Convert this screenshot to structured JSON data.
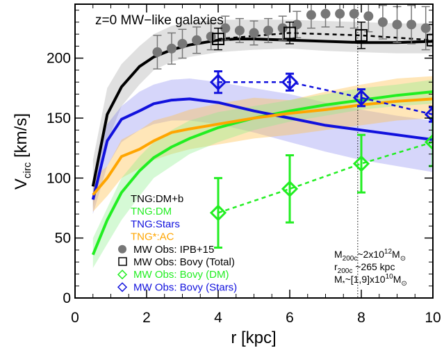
{
  "chart_data": {
    "type": "line",
    "title": "z=0 MW−like galaxies",
    "xlabel": "r [kpc]",
    "ylabel_main": "V",
    "ylabel_sub": "circ",
    "ylabel_unit": " [km/s]",
    "xlim": [
      0,
      10
    ],
    "ylim": [
      0,
      245
    ],
    "xticks": [
      0,
      2,
      4,
      6,
      8,
      10
    ],
    "yticks": [
      0,
      50,
      100,
      150,
      200
    ],
    "grid": false,
    "legend_position": "bottom-left",
    "vline_x": 7.9,
    "colors": {
      "dmb": "#000000",
      "dm": "#22ee22",
      "stars": "#1111dd",
      "ac": "#ffa500",
      "obs": "#777777"
    },
    "bands": [
      {
        "key": "dmb",
        "color": "#bbbbbb",
        "opacity": 0.45,
        "x": [
          0.5,
          0.9,
          1.3,
          1.8,
          2.2,
          2.7,
          3.2,
          4,
          5,
          6,
          7,
          8,
          9,
          10
        ],
        "lo": [
          75,
          130,
          160,
          178,
          190,
          197,
          201,
          205,
          207,
          208,
          206,
          205,
          204,
          204
        ],
        "hi": [
          115,
          175,
          195,
          210,
          220,
          227,
          230,
          232,
          232,
          232,
          231,
          230,
          229,
          229
        ]
      },
      {
        "key": "stars",
        "color": "#7777ee",
        "opacity": 0.3,
        "x": [
          0.5,
          0.9,
          1.3,
          1.8,
          2.2,
          2.7,
          3.2,
          4,
          5,
          6,
          7,
          8,
          9,
          10
        ],
        "lo": [
          70,
          110,
          130,
          140,
          145,
          148,
          148,
          145,
          138,
          130,
          122,
          115,
          110,
          105
        ],
        "hi": [
          100,
          145,
          160,
          172,
          178,
          182,
          183,
          180,
          175,
          170,
          163,
          157,
          152,
          148
        ]
      },
      {
        "key": "ac",
        "color": "#ffc04d",
        "opacity": 0.4,
        "x": [
          0.5,
          0.9,
          1.3,
          1.8,
          2.2,
          2.7,
          3.2,
          4,
          5,
          6,
          7,
          8,
          9,
          10
        ],
        "lo": [
          72,
          85,
          100,
          108,
          115,
          120,
          124,
          128,
          133,
          136,
          140,
          144,
          148,
          150
        ],
        "hi": [
          100,
          110,
          132,
          140,
          148,
          152,
          157,
          162,
          167,
          165,
          172,
          178,
          183,
          185
        ]
      },
      {
        "key": "dm",
        "color": "#88ee88",
        "opacity": 0.35,
        "x": [
          0.5,
          0.9,
          1.3,
          1.8,
          2.2,
          2.7,
          3.2,
          4,
          5,
          6,
          7,
          8,
          9,
          10
        ],
        "lo": [
          25,
          45,
          65,
          85,
          100,
          110,
          120,
          130,
          140,
          147,
          152,
          157,
          160,
          162
        ],
        "hi": [
          50,
          75,
          100,
          118,
          130,
          140,
          148,
          155,
          160,
          165,
          170,
          175,
          178,
          182
        ]
      }
    ],
    "series": [
      {
        "name": "TNG:DM+b",
        "key": "dmb",
        "x": [
          0.5,
          0.9,
          1.3,
          1.8,
          2.2,
          2.7,
          3.2,
          3.6,
          4,
          4.5,
          5,
          6,
          7,
          8,
          9,
          10
        ],
        "y": [
          93,
          153,
          176,
          193,
          201,
          207,
          211,
          213,
          215,
          216,
          216,
          215,
          214,
          213,
          213,
          214
        ]
      },
      {
        "name": "TNG:DM",
        "key": "dm",
        "x": [
          0.5,
          0.9,
          1.3,
          1.8,
          2.2,
          2.7,
          3.2,
          4,
          5,
          6,
          7,
          8,
          9,
          10
        ],
        "y": [
          36,
          65,
          88,
          106,
          117,
          126,
          133,
          142,
          150,
          156,
          161,
          165,
          169,
          172
        ]
      },
      {
        "name": "TNG:Stars",
        "key": "stars",
        "x": [
          0.5,
          0.9,
          1.3,
          1.8,
          2.2,
          2.7,
          3.2,
          4,
          5,
          6,
          7,
          8,
          9,
          10
        ],
        "y": [
          82,
          131,
          149,
          156,
          162,
          165,
          166,
          163,
          156,
          150,
          144,
          140,
          136,
          132
        ]
      },
      {
        "name": "TNG*:AC",
        "key": "ac",
        "x": [
          0.5,
          0.9,
          1.3,
          1.8,
          2.2,
          2.7,
          3.2,
          4,
          5,
          6,
          7,
          8,
          9,
          10
        ],
        "y": [
          86,
          100,
          118,
          124,
          131,
          138,
          141,
          145,
          150,
          154,
          157,
          161,
          164,
          166
        ]
      }
    ],
    "obs_ipb": {
      "name": "MW Obs: IPB+15",
      "x": [
        2.3,
        2.7,
        3.0,
        3.4,
        3.8,
        4.2,
        4.6,
        5.0,
        5.4,
        5.8,
        6.2,
        6.6,
        7.0,
        7.4,
        7.8,
        8.2,
        8.6,
        9.0,
        9.4,
        9.8
      ],
      "y": [
        205,
        208,
        212,
        215,
        218,
        225,
        223,
        221,
        223,
        225,
        228,
        236,
        237,
        237,
        237,
        235,
        230,
        228,
        228,
        225
      ],
      "err": [
        14,
        13,
        12,
        11,
        11,
        10,
        10,
        10,
        10,
        10,
        11,
        11,
        11,
        11,
        12,
        13,
        14,
        15,
        16,
        18
      ]
    },
    "obs_bovy_total": {
      "name": "MW Obs: Bovy (Total)",
      "x": [
        4,
        6,
        8,
        10
      ],
      "y": [
        216,
        221,
        219,
        215
      ],
      "err": [
        9,
        9,
        11,
        13
      ],
      "line_y": [
        216,
        221,
        219,
        215
      ]
    },
    "obs_bovy_dm": {
      "name": "MW Obs: Bovy (DM)",
      "x": [
        4,
        6,
        8,
        10
      ],
      "y": [
        71,
        91,
        112,
        130
      ],
      "err": [
        29,
        28,
        24,
        20
      ]
    },
    "obs_bovy_stars": {
      "name": "MW Obs: Bovy (Stars)",
      "x": [
        4,
        6,
        8,
        10
      ],
      "y": [
        180,
        180,
        167,
        153
      ],
      "err": [
        9,
        7,
        7,
        6
      ]
    },
    "legend": [
      {
        "label": "TNG:DM+b",
        "color": "#000000",
        "marker": "none"
      },
      {
        "label": "TNG:DM",
        "color": "#22ee22",
        "marker": "none"
      },
      {
        "label": "TNG:Stars",
        "color": "#1111dd",
        "marker": "none"
      },
      {
        "label": "TNG*:AC",
        "color": "#ffa500",
        "marker": "none"
      },
      {
        "label": "MW Obs: IPB+15",
        "color": "#777777",
        "marker": "circle"
      },
      {
        "label": "MW Obs: Bovy (Total)",
        "color": "#000000",
        "marker": "square"
      },
      {
        "label": "MW Obs: Bovy (DM)",
        "color": "#22ee22",
        "marker": "diamond"
      },
      {
        "label": "MW Obs: Bovy (Stars)",
        "color": "#1111dd",
        "marker": "diamond"
      }
    ],
    "info": {
      "line1": "M200c~2x1012M⊙",
      "line2": "r200c ~265 kpc",
      "line3": "M*~[1,9]x1010M⊙"
    }
  }
}
